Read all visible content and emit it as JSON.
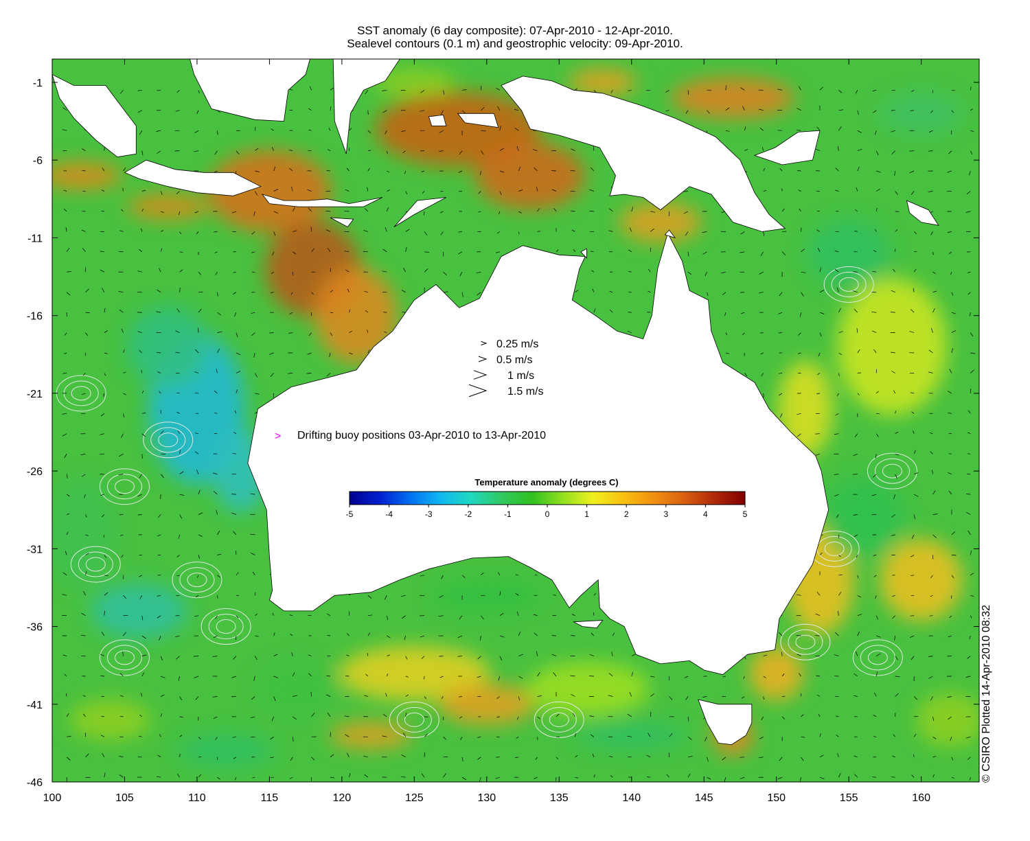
{
  "title": {
    "line1": "SST anomaly (6 day composite): 07-Apr-2010 - 12-Apr-2010.",
    "line2": "Sealevel contours (0.1 m) and geostrophic velocity: 09-Apr-2010."
  },
  "axes": {
    "x_ticks": [
      "100",
      "105",
      "110",
      "115",
      "120",
      "125",
      "130",
      "135",
      "140",
      "145",
      "150",
      "155",
      "160"
    ],
    "y_ticks": [
      "-1",
      "-6",
      "-11",
      "-16",
      "-21",
      "-26",
      "-31",
      "-36",
      "-41",
      "-46"
    ],
    "x_range": [
      100,
      164
    ],
    "y_range": [
      -46,
      0.5
    ]
  },
  "velocity_legend": [
    {
      "label": "0.25 m/s",
      "speed": 0.25
    },
    {
      "label": "0.5 m/s",
      "speed": 0.5
    },
    {
      "label": "1 m/s",
      "speed": 1
    },
    {
      "label": "1.5 m/s",
      "speed": 1.5
    }
  ],
  "buoy_legend": {
    "symbol": ">",
    "label": "Drifting buoy positions 03-Apr-2010 to 13-Apr-2010",
    "color": "#ff00ff"
  },
  "colorbar": {
    "title": "Temperature anomaly (degrees C)",
    "ticks": [
      "-5",
      "-4",
      "-3",
      "-2",
      "-1",
      "0",
      "1",
      "2",
      "3",
      "4",
      "5"
    ],
    "range": [
      -5,
      5
    ],
    "colors": [
      "#00008f",
      "#0020d0",
      "#0070f0",
      "#10b8f0",
      "#20d8c0",
      "#30c860",
      "#30c020",
      "#90e020",
      "#f0f020",
      "#f8c010",
      "#f09010",
      "#d86010",
      "#b02808",
      "#800000"
    ]
  },
  "colors": {
    "land": "#ffffff",
    "coast": "#000000",
    "contour": "#e0e8e0",
    "ocean_base": "#48c040"
  },
  "credit": "© CSIRO Plotted 14-Apr-2010 08:32"
}
